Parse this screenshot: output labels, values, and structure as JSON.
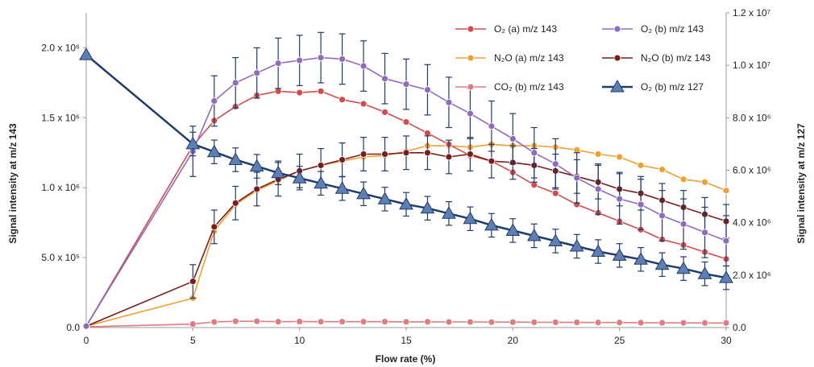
{
  "chart_data": {
    "type": "line",
    "title": "",
    "xlabel": "Flow rate (%)",
    "ylabel_left": "Signal intensity at m/z 143",
    "ylabel_right": "Signal intensity at m/z 127",
    "xlim": [
      0,
      30
    ],
    "ylim_left": [
      0,
      2250000
    ],
    "ylim_right": [
      0,
      12000000
    ],
    "x_ticks": [
      0,
      5,
      10,
      15,
      20,
      25,
      30
    ],
    "y_ticks_left": [
      {
        "value": 0,
        "label": "0.0"
      },
      {
        "value": 500000,
        "label": "5.0 x 10⁵"
      },
      {
        "value": 1000000,
        "label": "1.0 x 10⁶"
      },
      {
        "value": 1500000,
        "label": "1.5 x 10⁶"
      },
      {
        "value": 2000000,
        "label": "2.0 x 10⁶"
      }
    ],
    "y_ticks_right": [
      {
        "value": 0,
        "label": "0.0"
      },
      {
        "value": 2000000,
        "label": "2.0 x 10⁶"
      },
      {
        "value": 4000000,
        "label": "4.0 x 10⁶"
      },
      {
        "value": 6000000,
        "label": "6.0 x 10⁶"
      },
      {
        "value": 8000000,
        "label": "8.0 x 10⁶"
      },
      {
        "value": 10000000,
        "label": "1.0 x 10⁷"
      },
      {
        "value": 12000000,
        "label": "1.2 x 10⁷"
      }
    ],
    "grid": false,
    "legend_position": "top-right",
    "x": [
      0,
      5,
      6,
      7,
      8,
      9,
      10,
      11,
      12,
      13,
      14,
      15,
      16,
      17,
      18,
      19,
      20,
      21,
      22,
      23,
      24,
      25,
      26,
      27,
      28,
      29,
      30
    ],
    "series": [
      {
        "name": "O₂ (a) m/z 143",
        "axis": "left",
        "color": "#d34b4b",
        "marker": "circle",
        "errorbars": false,
        "values": [
          10000,
          1300000,
          1480000,
          1580000,
          1660000,
          1690000,
          1680000,
          1690000,
          1630000,
          1600000,
          1540000,
          1470000,
          1390000,
          1310000,
          1230000,
          1190000,
          1110000,
          1020000,
          960000,
          880000,
          820000,
          760000,
          700000,
          630000,
          590000,
          540000,
          490000
        ]
      },
      {
        "name": "N₂O (a) m/z 143",
        "axis": "left",
        "color": "#f0a030",
        "marker": "circle",
        "errorbars": false,
        "values": [
          10000,
          210000,
          690000,
          880000,
          980000,
          1050000,
          1120000,
          1160000,
          1190000,
          1220000,
          1230000,
          1260000,
          1300000,
          1300000,
          1290000,
          1310000,
          1300000,
          1300000,
          1290000,
          1270000,
          1240000,
          1220000,
          1160000,
          1130000,
          1060000,
          1040000,
          980000
        ]
      },
      {
        "name": "CO₂ (b) m/z 143",
        "axis": "left",
        "color": "#e07b80",
        "marker": "circle",
        "errorbars": false,
        "values": [
          5000,
          25000,
          40000,
          45000,
          45000,
          42000,
          43000,
          42000,
          42000,
          42000,
          42000,
          41000,
          41000,
          40000,
          40000,
          39000,
          39000,
          38000,
          38000,
          37000,
          36000,
          36000,
          35000,
          34000,
          34000,
          33000,
          33000
        ]
      },
      {
        "name": "O₂ (b) m/z 143",
        "axis": "left",
        "color": "#8e6bbf",
        "marker": "circle",
        "errorbars": true,
        "error": 180000,
        "values": [
          10000,
          1260000,
          1620000,
          1750000,
          1820000,
          1890000,
          1910000,
          1930000,
          1920000,
          1870000,
          1780000,
          1740000,
          1700000,
          1610000,
          1530000,
          1440000,
          1350000,
          1250000,
          1170000,
          1070000,
          990000,
          920000,
          880000,
          800000,
          740000,
          680000,
          620000
        ]
      },
      {
        "name": "N₂O (b) m/z 143",
        "axis": "left",
        "color": "#7a1c1c",
        "marker": "circle",
        "errorbars": true,
        "error": 120000,
        "values": [
          10000,
          330000,
          720000,
          890000,
          990000,
          1060000,
          1120000,
          1160000,
          1200000,
          1240000,
          1240000,
          1250000,
          1250000,
          1220000,
          1240000,
          1190000,
          1180000,
          1160000,
          1120000,
          1080000,
          1040000,
          990000,
          960000,
          910000,
          860000,
          810000,
          760000
        ]
      },
      {
        "name": "O₂ (b) m/z 127",
        "axis": "right",
        "color": "#1f3a6e",
        "marker_color": "#5e7fb3",
        "marker": "triangle",
        "errorbars": true,
        "error": 450000,
        "values": [
          10400000,
          7000000,
          6700000,
          6400000,
          6150000,
          5900000,
          5700000,
          5500000,
          5300000,
          5100000,
          4900000,
          4700000,
          4550000,
          4350000,
          4150000,
          3900000,
          3700000,
          3500000,
          3300000,
          3100000,
          2900000,
          2750000,
          2600000,
          2400000,
          2250000,
          2050000,
          1900000
        ]
      }
    ]
  }
}
